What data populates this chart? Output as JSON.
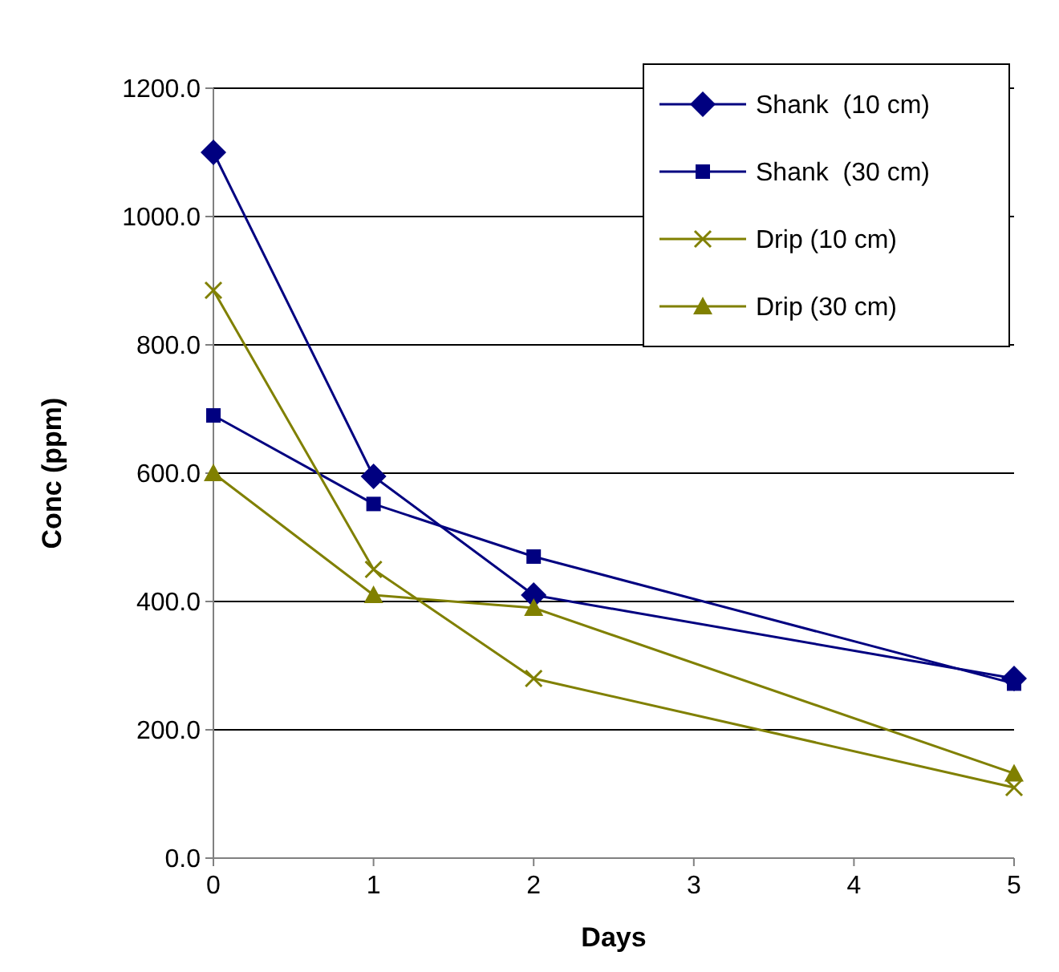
{
  "chart_data": {
    "type": "line",
    "xlabel": "Days",
    "ylabel": "Conc (ppm)",
    "x": [
      0,
      1,
      2,
      5
    ],
    "xlim": [
      0,
      5
    ],
    "xticks": [
      0,
      1,
      2,
      3,
      4,
      5
    ],
    "ylim": [
      0,
      1200
    ],
    "yticks": [
      {
        "value": 0,
        "label": "0.0"
      },
      {
        "value": 200,
        "label": "200.0"
      },
      {
        "value": 400,
        "label": "400.0"
      },
      {
        "value": 600,
        "label": "600.0"
      },
      {
        "value": 800,
        "label": "800.0"
      },
      {
        "value": 1000,
        "label": "1000.0"
      },
      {
        "value": 1200,
        "label": "1200.0"
      }
    ],
    "grid": "y",
    "legend": "top right",
    "line_style": "solid",
    "series": [
      {
        "name": "Shank  (10 cm)",
        "color": "#000080",
        "marker": "diamond",
        "values": [
          1100,
          595,
          410,
          280
        ]
      },
      {
        "name": "Shank  (30 cm)",
        "color": "#000080",
        "marker": "square",
        "values": [
          690,
          552,
          470,
          272
        ]
      },
      {
        "name": "Drip (10 cm)",
        "color": "#808000",
        "marker": "cross",
        "values": [
          885,
          450,
          280,
          110
        ]
      },
      {
        "name": "Drip (30 cm)",
        "color": "#808000",
        "marker": "triangle",
        "values": [
          600,
          410,
          390,
          132
        ]
      }
    ]
  }
}
